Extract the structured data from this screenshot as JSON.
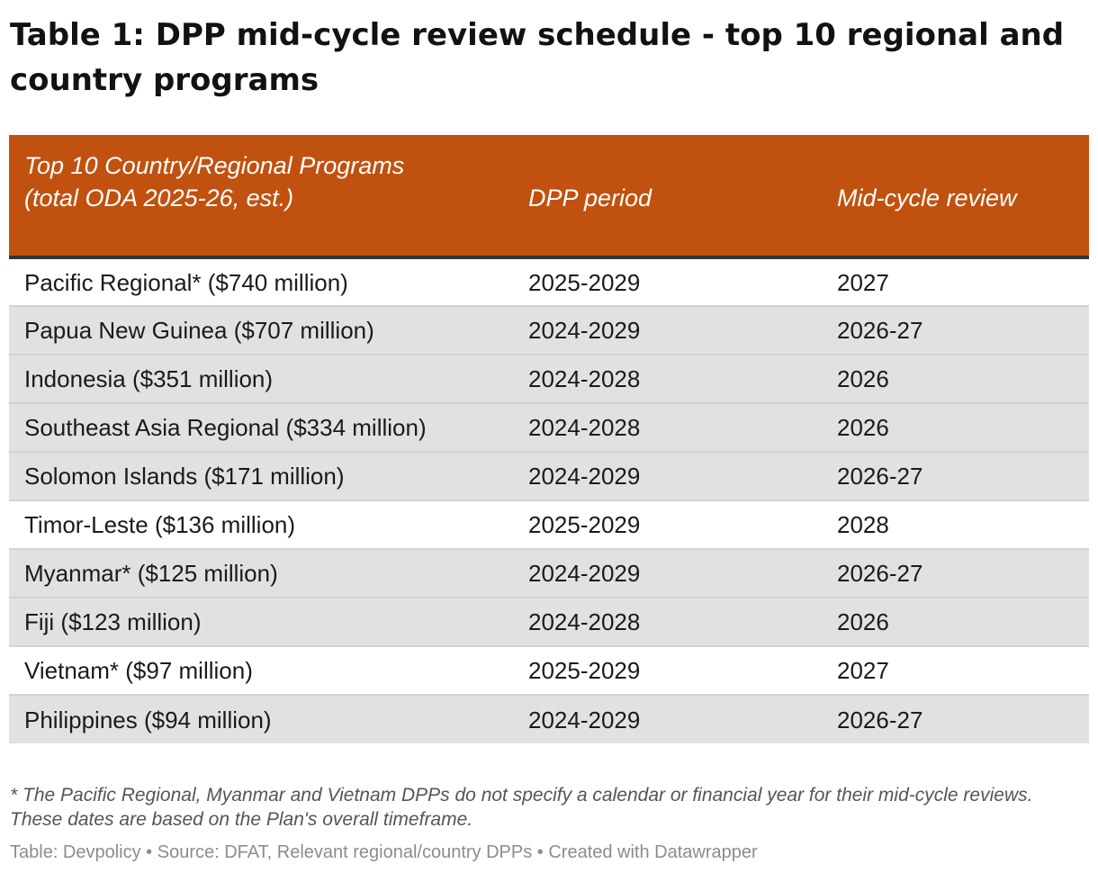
{
  "title": "Table 1: DPP mid-cycle review schedule - top 10 regional and country programs",
  "colors": {
    "header_bg": "#c1510f",
    "header_text": "#ffffff",
    "shaded_row": "#e1e1e1"
  },
  "chart_data": {
    "type": "table",
    "title": "Table 1: DPP mid-cycle review schedule - top 10 regional and country programs",
    "columns": [
      "Top 10 Country/Regional Programs\n(total ODA 2025-26, est.)",
      "DPP period",
      "Mid-cycle review"
    ],
    "rows": [
      {
        "program": "Pacific Regional* ($740 million)",
        "period": "2025-2029",
        "review": "2027",
        "shaded": false
      },
      {
        "program": "Papua New Guinea ($707 million)",
        "period": "2024-2029",
        "review": "2026-27",
        "shaded": true
      },
      {
        "program": "Indonesia ($351 million)",
        "period": "2024-2028",
        "review": "2026",
        "shaded": true
      },
      {
        "program": "Southeast Asia Regional ($334 million)",
        "period": "2024-2028",
        "review": "2026",
        "shaded": true
      },
      {
        "program": "Solomon Islands ($171 million)",
        "period": "2024-2029",
        "review": "2026-27",
        "shaded": true
      },
      {
        "program": "Timor-Leste ($136 million)",
        "period": "2025-2029",
        "review": "2028",
        "shaded": false
      },
      {
        "program": "Myanmar* ($125 million)",
        "period": "2024-2029",
        "review": "2026-27",
        "shaded": true
      },
      {
        "program": "Fiji ($123 million)",
        "period": "2024-2028",
        "review": "2026",
        "shaded": true
      },
      {
        "program": "Vietnam* ($97 million)",
        "period": "2025-2029",
        "review": "2027",
        "shaded": false
      },
      {
        "program": "Philippines ($94 million)",
        "period": "2024-2029",
        "review": "2026-27",
        "shaded": true
      }
    ]
  },
  "footnote": "* The Pacific Regional, Myanmar and Vietnam DPPs do not specify a calendar or financial year for their mid-cycle reviews. These dates are based on the Plan's overall timeframe.",
  "credits": "Table: Devpolicy • Source: DFAT, Relevant regional/country DPPs • Created with Datawrapper"
}
